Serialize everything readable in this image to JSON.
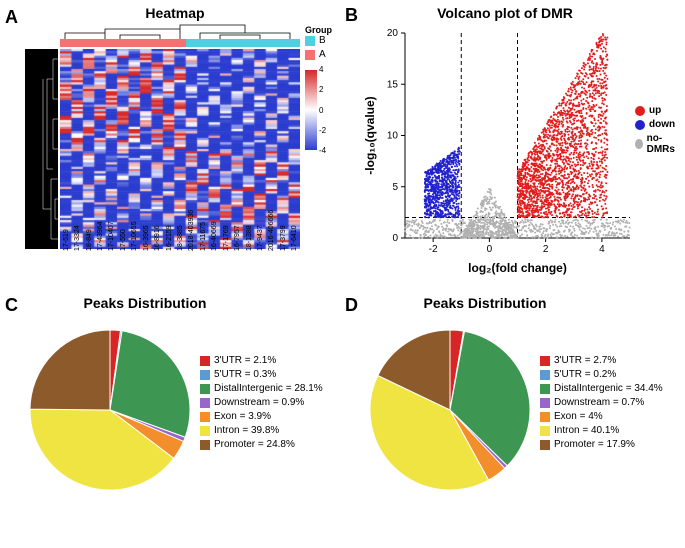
{
  "panel_a": {
    "label": "A",
    "title": "Heatmap",
    "group_label": "Group",
    "groups": [
      "B",
      "A"
    ],
    "group_colors": [
      "#4dd0e1",
      "#f87171"
    ],
    "colorbar": {
      "min": -4,
      "max": 4,
      "ticks": [
        -4,
        -2,
        0,
        2,
        4
      ]
    },
    "samples": [
      "17-519",
      "17-3324",
      "18-849",
      "17-43964",
      "17-10407",
      "17-550",
      "17-10655",
      "16-3965",
      "16-8916",
      "16-2159",
      "18-3885",
      "2018-403936",
      "17-11675",
      "16-40669",
      "17-1769",
      "16-7957",
      "18-1388",
      "17-9437",
      "2016-406666",
      "17-3799",
      "17-6410"
    ]
  },
  "panel_b": {
    "label": "B",
    "title": "Volcano plot of DMR",
    "xlabel": "log₂(fold change)",
    "ylabel": "-log₁₀(qvalue)",
    "xlim": [
      -3,
      5
    ],
    "ylim": [
      0,
      20
    ],
    "xticks": [
      -2,
      0,
      2,
      4
    ],
    "yticks": [
      0,
      5,
      10,
      15,
      20
    ],
    "threshold_x_neg": -1,
    "threshold_x_pos": 1,
    "threshold_y": 2,
    "legend": [
      {
        "label": "up",
        "color": "#e11d1d"
      },
      {
        "label": "down",
        "color": "#2222cc"
      },
      {
        "label": "no-DMRs",
        "color": "#b0b0b0"
      }
    ]
  },
  "panel_c": {
    "label": "C",
    "title": "Peaks Distribution",
    "slices": [
      {
        "label": "3'UTR",
        "value": 2.1,
        "color": "#d82626"
      },
      {
        "label": "5'UTR",
        "value": 0.3,
        "color": "#5b9bd5"
      },
      {
        "label": "DistalIntergenic",
        "value": 28.1,
        "color": "#3d9651"
      },
      {
        "label": "Downstream",
        "value": 0.9,
        "color": "#9966cc"
      },
      {
        "label": "Exon",
        "value": 3.9,
        "color": "#f28e2b"
      },
      {
        "label": "Intron",
        "value": 39.8,
        "color": "#f0e442"
      },
      {
        "label": "Promoter",
        "value": 24.8,
        "color": "#8c5a2b"
      }
    ]
  },
  "panel_d": {
    "label": "D",
    "title": "Peaks Distribution",
    "slices": [
      {
        "label": "3'UTR",
        "value": 2.7,
        "color": "#d82626"
      },
      {
        "label": "5'UTR",
        "value": 0.2,
        "color": "#5b9bd5"
      },
      {
        "label": "DistalIntergenic",
        "value": 34.4,
        "color": "#3d9651"
      },
      {
        "label": "Downstream",
        "value": 0.7,
        "color": "#9966cc"
      },
      {
        "label": "Exon",
        "value": 4.0,
        "color": "#f28e2b"
      },
      {
        "label": "Intron",
        "value": 40.1,
        "color": "#f0e442"
      },
      {
        "label": "Promoter",
        "value": 17.9,
        "color": "#8c5a2b"
      }
    ]
  }
}
